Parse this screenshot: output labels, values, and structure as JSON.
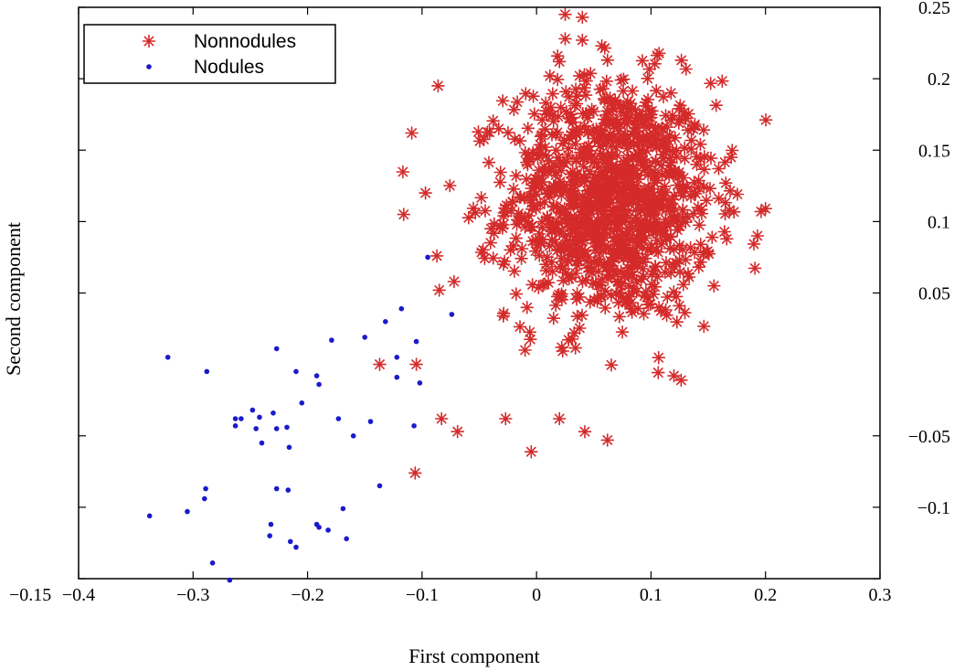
{
  "chart_data": {
    "type": "scatter",
    "title": "",
    "xlabel": "First component",
    "ylabel": "Second component",
    "xlim": [
      -0.4,
      0.3
    ],
    "ylim": [
      -0.15,
      0.25
    ],
    "x_ticks": [
      -0.4,
      -0.3,
      -0.2,
      -0.1,
      0,
      0.1,
      0.2,
      0.3
    ],
    "x_tick_labels": [
      "−0.4",
      "−0.3",
      "−0.2",
      "−0.1",
      "0",
      "0.1",
      "0.2",
      "0.3"
    ],
    "y_ticks": [
      -0.15,
      -0.1,
      -0.05,
      0.05,
      0.1,
      0.15,
      0.2,
      0.25
    ],
    "y_tick_labels": [
      "−0.15",
      "−0.1",
      "−0.05",
      "0.05",
      "0.1",
      "0.15",
      "0.2",
      "0.25"
    ],
    "grid": false,
    "legend_position": "top-left",
    "series": [
      {
        "name": "Nonnodules",
        "marker": "asterisk",
        "color": "#d42a2a",
        "cluster": {
          "generated": true,
          "count": 1150,
          "center": [
            0.065,
            0.115
          ],
          "spread": [
            0.045,
            0.042
          ]
        },
        "points": [
          [
            -0.109,
            0.162
          ],
          [
            -0.116,
            0.105
          ],
          [
            -0.086,
            0.195
          ],
          [
            -0.097,
            0.12
          ],
          [
            -0.087,
            0.076
          ],
          [
            -0.072,
            0.058
          ],
          [
            -0.085,
            0.052
          ],
          [
            -0.137,
            0.0
          ],
          [
            -0.105,
            0.0
          ],
          [
            -0.083,
            -0.038
          ],
          [
            -0.069,
            -0.047
          ],
          [
            -0.106,
            -0.076
          ],
          [
            -0.027,
            -0.038
          ],
          [
            0.02,
            -0.038
          ],
          [
            -0.01,
            0.01
          ],
          [
            0.022,
            0.012
          ],
          [
            0.025,
            0.245
          ],
          [
            0.04,
            0.243
          ],
          [
            0.025,
            0.228
          ],
          [
            0.04,
            0.227
          ],
          [
            0.057,
            0.223
          ],
          [
            0.02,
            0.212
          ],
          [
            0.062,
            0.213
          ],
          [
            0.058,
            0.193
          ],
          [
            0.17,
            0.145
          ],
          [
            0.193,
            0.09
          ],
          [
            0.062,
            -0.053
          ],
          [
            0.12,
            -0.008
          ],
          [
            0.155,
            0.055
          ],
          [
            0.14,
            0.14
          ],
          [
            0.1,
            0.175
          ],
          [
            0.008,
            0.183
          ]
        ]
      },
      {
        "name": "Nodules",
        "marker": "dot",
        "color": "#1a1acc",
        "points": [
          [
            -0.322,
            0.005
          ],
          [
            -0.288,
            -0.005
          ],
          [
            -0.338,
            -0.106
          ],
          [
            -0.305,
            -0.103
          ],
          [
            -0.289,
            -0.087
          ],
          [
            -0.29,
            -0.094
          ],
          [
            -0.283,
            -0.139
          ],
          [
            -0.268,
            -0.151
          ],
          [
            -0.263,
            -0.038
          ],
          [
            -0.258,
            -0.038
          ],
          [
            -0.263,
            -0.043
          ],
          [
            -0.248,
            -0.032
          ],
          [
            -0.242,
            -0.037
          ],
          [
            -0.245,
            -0.045
          ],
          [
            -0.24,
            -0.055
          ],
          [
            -0.232,
            -0.112
          ],
          [
            -0.233,
            -0.12
          ],
          [
            -0.23,
            -0.034
          ],
          [
            -0.227,
            0.011
          ],
          [
            -0.227,
            -0.087
          ],
          [
            -0.227,
            -0.045
          ],
          [
            -0.218,
            -0.044
          ],
          [
            -0.216,
            -0.058
          ],
          [
            -0.215,
            -0.124
          ],
          [
            -0.21,
            -0.128
          ],
          [
            -0.217,
            -0.088
          ],
          [
            -0.21,
            -0.005
          ],
          [
            -0.205,
            -0.027
          ],
          [
            -0.192,
            -0.008
          ],
          [
            -0.19,
            -0.014
          ],
          [
            -0.192,
            -0.112
          ],
          [
            -0.19,
            -0.114
          ],
          [
            -0.182,
            -0.116
          ],
          [
            -0.179,
            0.017
          ],
          [
            -0.173,
            -0.038
          ],
          [
            -0.169,
            -0.101
          ],
          [
            -0.166,
            -0.122
          ],
          [
            -0.16,
            -0.05
          ],
          [
            -0.15,
            0.019
          ],
          [
            -0.145,
            -0.04
          ],
          [
            -0.137,
            -0.085
          ],
          [
            -0.132,
            0.03
          ],
          [
            -0.122,
            -0.009
          ],
          [
            -0.118,
            0.039
          ],
          [
            -0.107,
            -0.043
          ],
          [
            -0.105,
            0.016
          ],
          [
            -0.102,
            -0.013
          ],
          [
            -0.095,
            0.075
          ],
          [
            -0.074,
            0.035
          ],
          [
            -0.122,
            0.005
          ]
        ]
      }
    ]
  }
}
